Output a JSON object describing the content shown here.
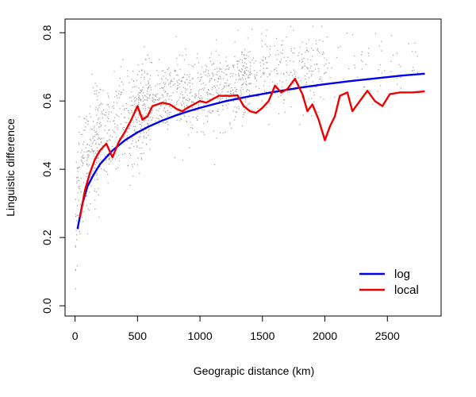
{
  "chart_data": {
    "type": "scatter",
    "xlabel": "Geograpic distance (km)",
    "ylabel": "Linguistic difference",
    "xlim": [
      -80,
      2930
    ],
    "ylim": [
      -0.03,
      0.84
    ],
    "xticks": [
      0,
      500,
      1000,
      1500,
      2000,
      2500
    ],
    "yticks": [
      0.0,
      0.2,
      0.4,
      0.6,
      0.8
    ],
    "xtick_labels": [
      "0",
      "500",
      "1000",
      "1500",
      "2000",
      "2500"
    ],
    "ytick_labels": [
      "0.0",
      "0.2",
      "0.4",
      "0.6",
      "0.8"
    ],
    "grid": false,
    "legend_position": "bottom-right",
    "scatter": {
      "color": "#9e9e9e",
      "description_values": "Dense cloud of gray points: rising steeply from ~0.1-0.3 near 0 km to ~0.5-0.65 by 500-1000 km, ~0.55-0.7 beyond, sparse after 2000 km."
    },
    "series": [
      {
        "name": "log",
        "color": "#0000ee",
        "type": "line",
        "x": [
          20,
          60,
          100,
          150,
          200,
          300,
          400,
          500,
          600,
          700,
          800,
          900,
          1000,
          1200,
          1400,
          1600,
          1800,
          2000,
          2200,
          2400,
          2600,
          2800
        ],
        "values": [
          0.225,
          0.3,
          0.35,
          0.385,
          0.415,
          0.455,
          0.485,
          0.508,
          0.527,
          0.543,
          0.557,
          0.569,
          0.58,
          0.599,
          0.614,
          0.627,
          0.639,
          0.649,
          0.658,
          0.666,
          0.674,
          0.68
        ]
      },
      {
        "name": "local",
        "color": "#ee0000",
        "type": "line",
        "x": [
          40,
          80,
          120,
          160,
          200,
          250,
          300,
          350,
          400,
          450,
          500,
          540,
          580,
          620,
          660,
          700,
          760,
          820,
          860,
          900,
          950,
          1000,
          1050,
          1100,
          1150,
          1200,
          1250,
          1300,
          1350,
          1400,
          1450,
          1500,
          1550,
          1600,
          1650,
          1700,
          1760,
          1820,
          1860,
          1900,
          1950,
          2000,
          2040,
          2080,
          2120,
          2180,
          2220,
          2280,
          2340,
          2400,
          2460,
          2520,
          2600,
          2700,
          2800
        ],
        "values": [
          0.26,
          0.34,
          0.39,
          0.43,
          0.455,
          0.475,
          0.435,
          0.48,
          0.51,
          0.545,
          0.585,
          0.545,
          0.555,
          0.585,
          0.59,
          0.595,
          0.59,
          0.575,
          0.57,
          0.58,
          0.59,
          0.6,
          0.595,
          0.605,
          0.615,
          0.615,
          0.615,
          0.617,
          0.585,
          0.57,
          0.565,
          0.58,
          0.6,
          0.645,
          0.625,
          0.635,
          0.665,
          0.62,
          0.57,
          0.59,
          0.545,
          0.485,
          0.525,
          0.555,
          0.615,
          0.625,
          0.57,
          0.6,
          0.63,
          0.6,
          0.585,
          0.62,
          0.625,
          0.625,
          0.628
        ]
      }
    ],
    "legend": [
      {
        "label": "log",
        "color": "#0000ee"
      },
      {
        "label": "local",
        "color": "#ee0000"
      }
    ]
  }
}
